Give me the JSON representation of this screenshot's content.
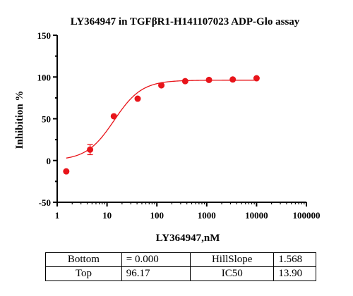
{
  "chart_data": {
    "type": "scatter",
    "title": "LY364947 in TGFβR1-H141107023 ADP-Glo  assay",
    "xlabel": "LY364947,nM",
    "ylabel": "Inhibition %",
    "x_scale": "log",
    "xlim": [
      1,
      100000
    ],
    "ylim": [
      -50,
      150
    ],
    "x_ticks": [
      1,
      10,
      100,
      1000,
      10000,
      100000
    ],
    "x_tick_labels": [
      "1",
      "10",
      "100",
      "1000",
      "10000",
      "100000"
    ],
    "y_ticks": [
      -50,
      0,
      50,
      100,
      150
    ],
    "y_tick_labels": [
      "-50",
      "0",
      "50",
      "100",
      "150"
    ],
    "grid": false,
    "color": "#e8141a",
    "points": [
      {
        "x": 1.52,
        "y": -13
      },
      {
        "x": 4.57,
        "y": 13,
        "err": 6
      },
      {
        "x": 13.7,
        "y": 53
      },
      {
        "x": 41.2,
        "y": 74
      },
      {
        "x": 123,
        "y": 90
      },
      {
        "x": 370,
        "y": 95
      },
      {
        "x": 1111,
        "y": 96.5
      },
      {
        "x": 3333,
        "y": 97
      },
      {
        "x": 10000,
        "y": 98.5
      }
    ],
    "fit": {
      "model": "four-parameter logistic",
      "bottom": 0.0,
      "top": 96.17,
      "ic50": 13.9,
      "hill_slope": 1.568,
      "x_range": [
        1.52,
        10000
      ]
    }
  },
  "params_table": {
    "rows": [
      {
        "label1": "Bottom",
        "value1": "= 0.000",
        "label2": "HillSlope",
        "value2": "1.568"
      },
      {
        "label1": "Top",
        "value1": "96.17",
        "label2": "IC50",
        "value2": "13.90"
      }
    ]
  }
}
